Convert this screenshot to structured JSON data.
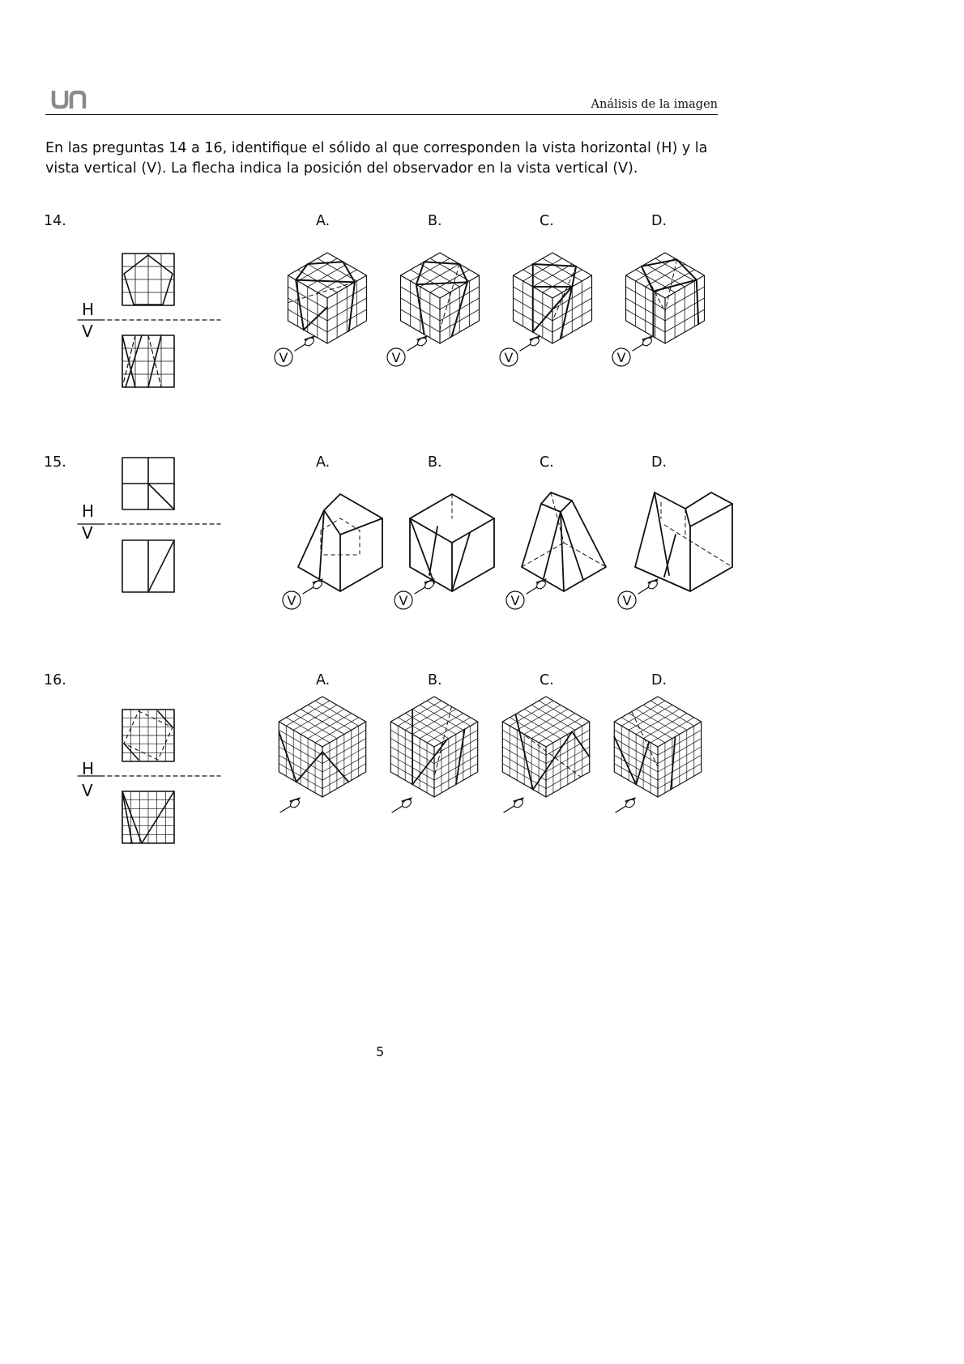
{
  "header": {
    "logo_text": "un",
    "title": "Análisis de la imagen"
  },
  "instructions": "En las preguntas 14 a 16, identifique el sólido al que corresponden la vista horizontal (H) y la vista vertical (V). La flecha indica la posición del observador en la vista vertical (V).",
  "questions": [
    {
      "number": "14.",
      "views": {
        "h_label": "H",
        "v_label": "V"
      },
      "options": [
        "A.",
        "B.",
        "C.",
        "D."
      ],
      "viewer_marker": "V"
    },
    {
      "number": "15.",
      "views": {
        "h_label": "H",
        "v_label": "V"
      },
      "options": [
        "A.",
        "B.",
        "C.",
        "D."
      ],
      "viewer_marker": "V"
    },
    {
      "number": "16.",
      "views": {
        "h_label": "H",
        "v_label": "V"
      },
      "options": [
        "A.",
        "B.",
        "C.",
        "D."
      ],
      "viewer_marker": ""
    }
  ],
  "footer": {
    "page_number": "5"
  },
  "icons": {
    "observer_arrow": "observer-arrow-icon",
    "viewer_circle": "viewer-v-circle-icon"
  }
}
